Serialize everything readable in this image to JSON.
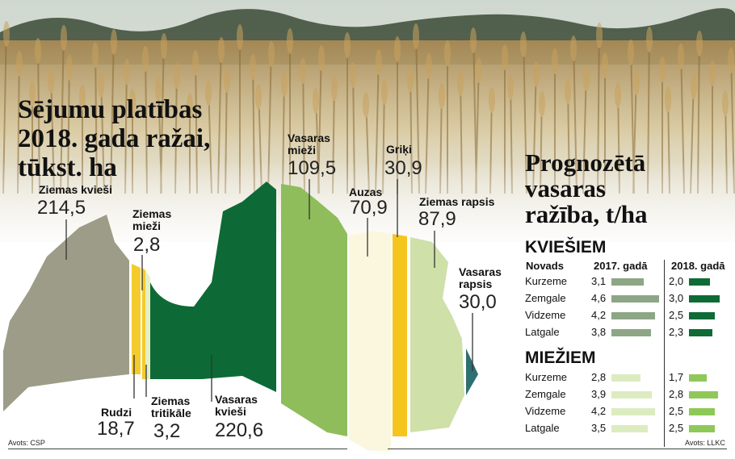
{
  "title_left": [
    "Sējumu platības",
    "2018. gada ražai,",
    "tūkst. ha"
  ],
  "title_right": [
    "Prognozētā",
    "vasaras",
    "ražība, t/ha"
  ],
  "source_left": "Avots: CSP",
  "source_right": "Avots: LLKC",
  "colors": {
    "ziemas_kviesi": "#9c9c88",
    "ziemas_miezi": "#f4cb2d",
    "rudzi": "#f4cb2d",
    "ziemas_tritikale": "#e6efc4",
    "vasaras_kviesi": "#0d6a36",
    "vasaras_miezi": "#8fbd5b",
    "auzas": "#fbf7df",
    "griki": "#f6c51d",
    "ziemas_rapsis": "#cfe0a8",
    "vasaras_rapsis": "#2e6f72",
    "bar_2017_kviesi": "#8da685",
    "bar_2018_kviesi": "#0e6b35",
    "bar_2017_miezi": "#dcecc0",
    "bar_2018_miezi": "#8ec957"
  },
  "chart_data": [
    {
      "type": "bar",
      "title": "Sējumu platības 2018. gada ražai, tūkst. ha",
      "categories": [
        "Ziemas kvieši",
        "Ziemas mieži",
        "Rudzi",
        "Ziemas tritikāle",
        "Vasaras kvieši",
        "Vasaras mieži",
        "Auzas",
        "Griķi",
        "Ziemas rapsis",
        "Vasaras rapsis"
      ],
      "values": [
        214.5,
        2.8,
        18.7,
        3.2,
        220.6,
        109.5,
        70.9,
        30.9,
        87.9,
        30.0
      ],
      "labels": [
        {
          "name": [
            "Ziemas kvieši"
          ],
          "value": "214,5"
        },
        {
          "name": [
            "Ziemas",
            "mieži"
          ],
          "value": "2,8"
        },
        {
          "name": [
            "Rudzi"
          ],
          "value": "18,7"
        },
        {
          "name": [
            "Ziemas",
            "tritikāle"
          ],
          "value": "3,2"
        },
        {
          "name": [
            "Vasaras",
            "kvieši"
          ],
          "value": "220,6"
        },
        {
          "name": [
            "Vasaras",
            "mieži"
          ],
          "value": "109,5"
        },
        {
          "name": [
            "Auzas"
          ],
          "value": "70,9"
        },
        {
          "name": [
            "Griķi"
          ],
          "value": "30,9"
        },
        {
          "name": [
            "Ziemas rapsis"
          ],
          "value": "87,9"
        },
        {
          "name": [
            "Vasaras",
            "rapsis"
          ],
          "value": "30,0"
        }
      ]
    },
    {
      "type": "bar",
      "title": "KVIEŠIEM",
      "categories": [
        "Kurzeme",
        "Zemgale",
        "Vidzeme",
        "Latgale"
      ],
      "series": [
        {
          "name": "2017. gadā",
          "values": [
            3.1,
            4.6,
            4.2,
            3.8
          ],
          "labels": [
            "3,1",
            "4,6",
            "4,2",
            "3,8"
          ]
        },
        {
          "name": "2018. gadā",
          "values": [
            2.0,
            3.0,
            2.5,
            2.3
          ],
          "labels": [
            "2,0",
            "3,0",
            "2,5",
            "2,3"
          ]
        }
      ]
    },
    {
      "type": "bar",
      "title": "MIEŽIEM",
      "categories": [
        "Kurzeme",
        "Zemgale",
        "Vidzeme",
        "Latgale"
      ],
      "series": [
        {
          "name": "2017. gadā",
          "values": [
            2.8,
            3.9,
            4.2,
            3.5
          ],
          "labels": [
            "2,8",
            "3,9",
            "4,2",
            "3,5"
          ]
        },
        {
          "name": "2018. gadā",
          "values": [
            1.7,
            2.8,
            2.5,
            2.5
          ],
          "labels": [
            "1,7",
            "2,8",
            "2,5",
            "2,5"
          ]
        }
      ]
    }
  ],
  "table": {
    "col_novads": "Novads",
    "col_2017": "2017. gadā",
    "col_2018": "2018. gadā"
  }
}
